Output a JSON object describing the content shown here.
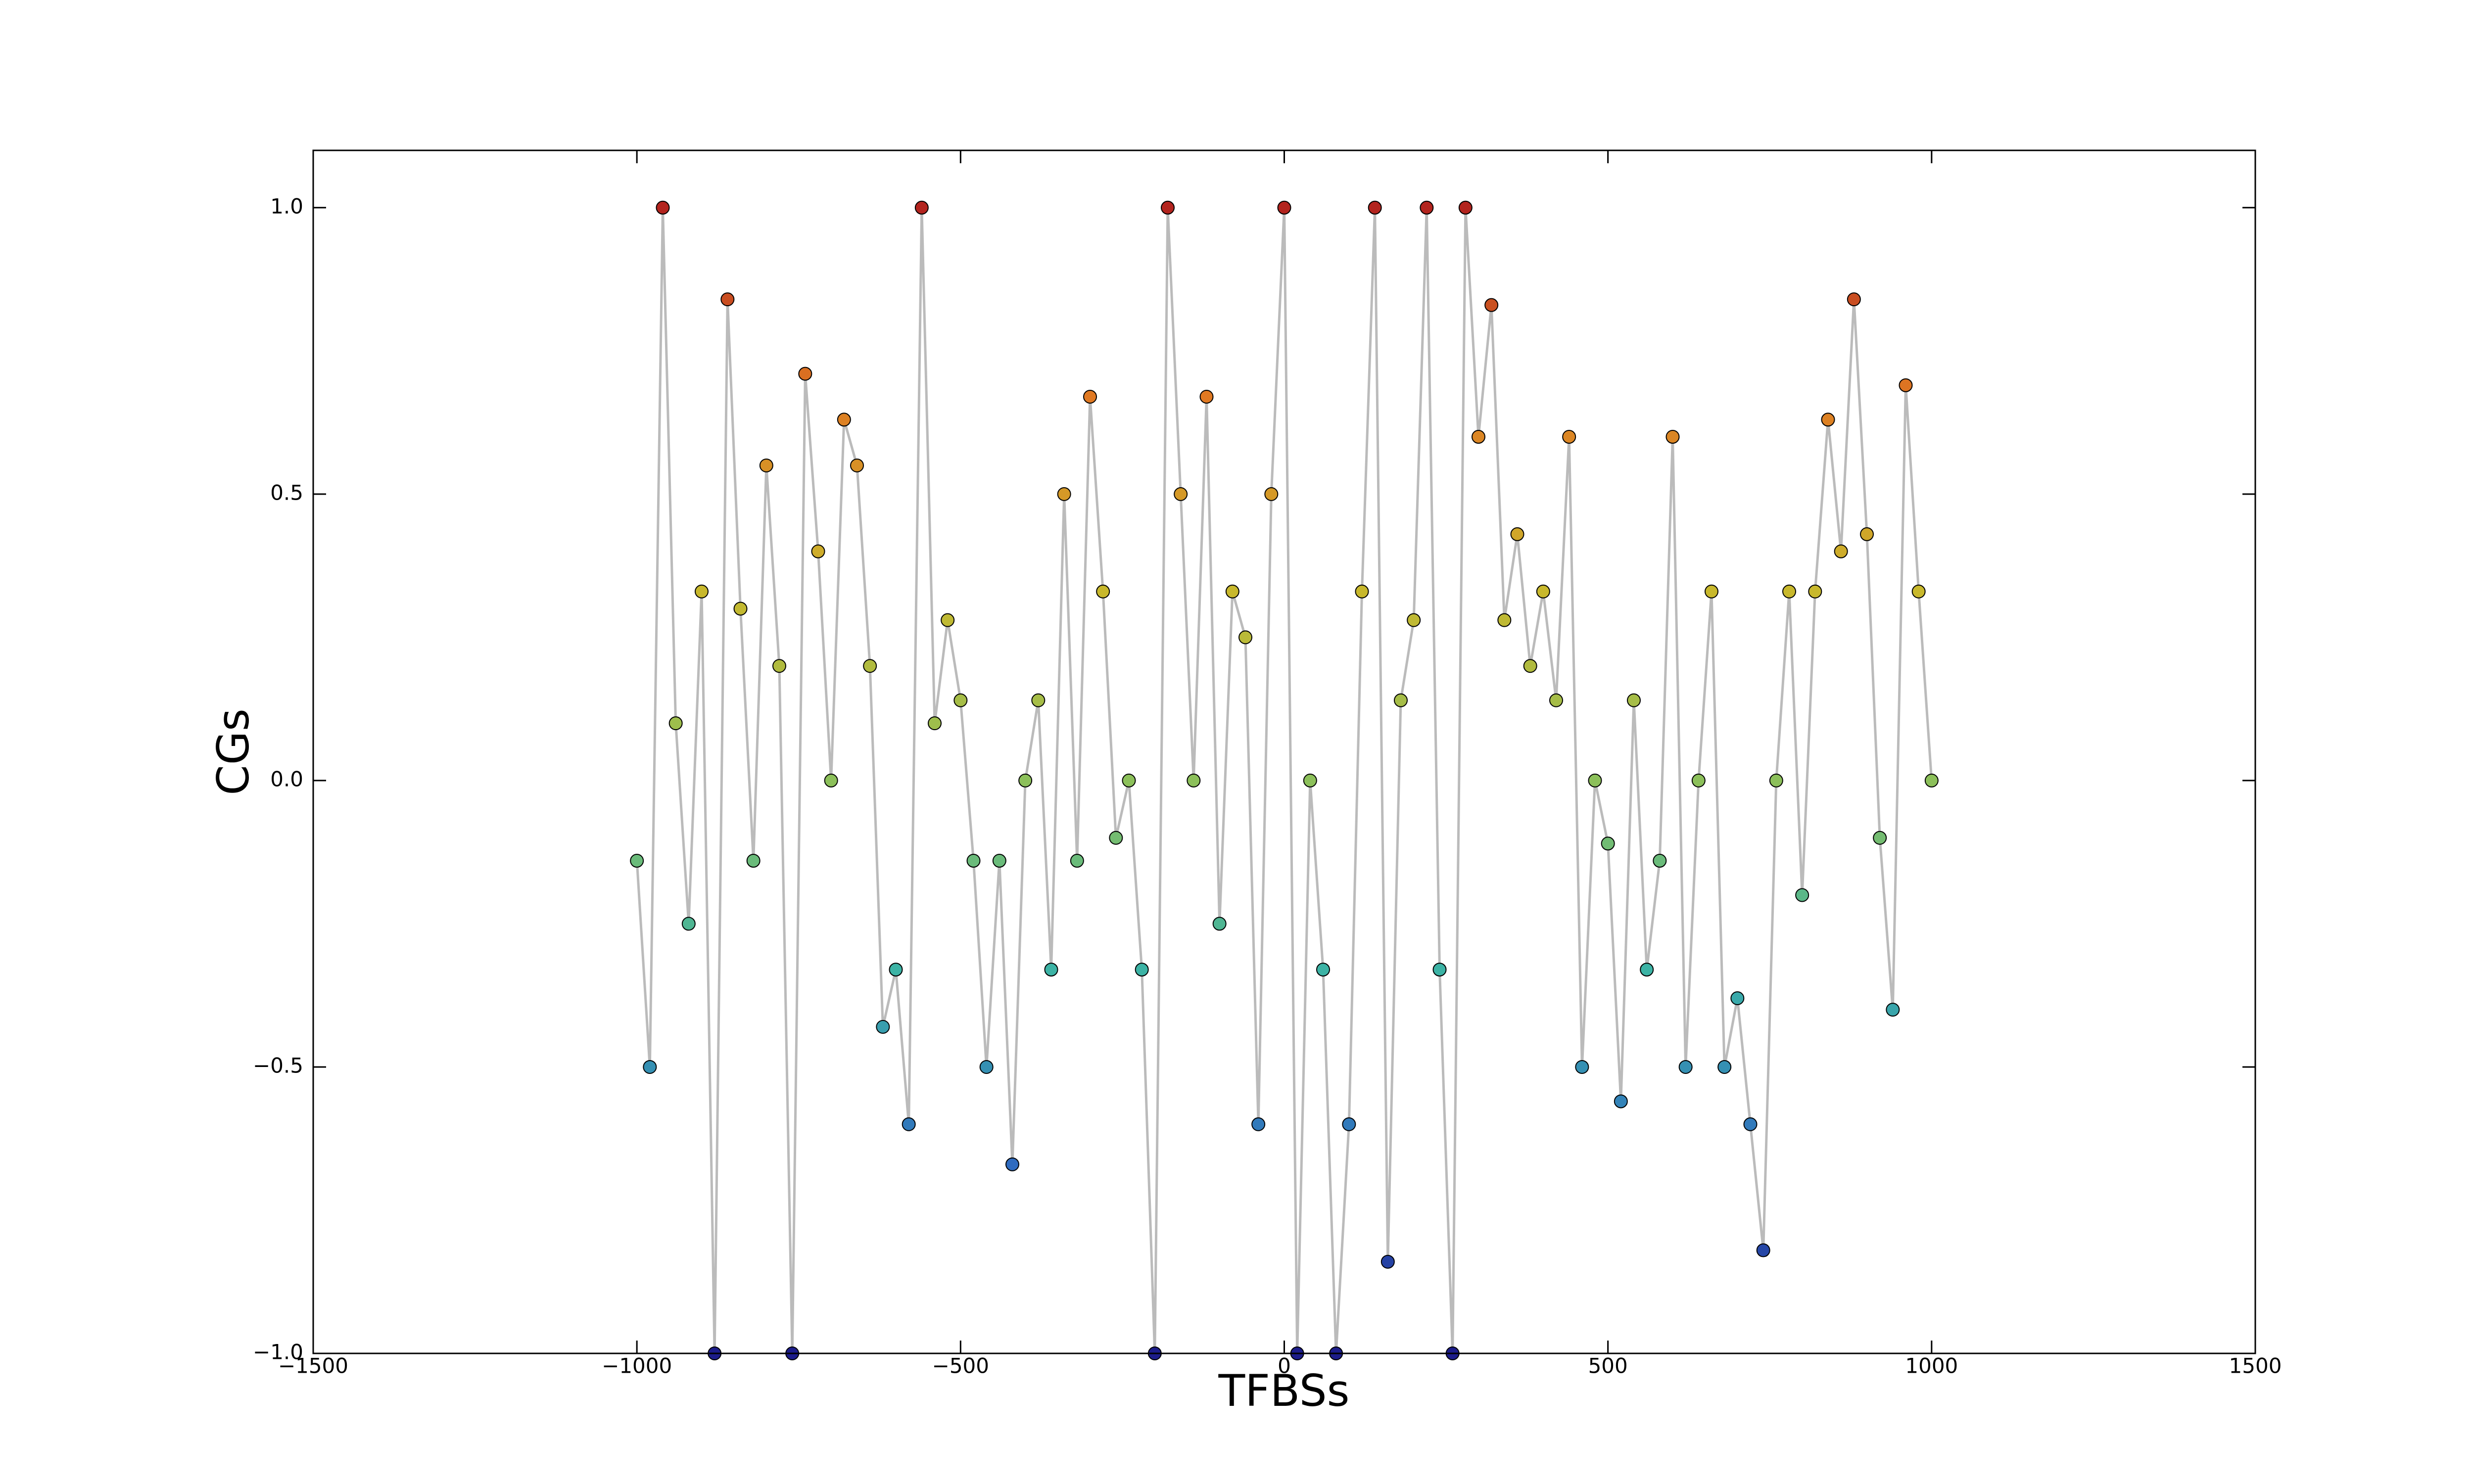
{
  "chart_data": {
    "type": "scatter",
    "x_label": "TFBSs",
    "y_label": "CGs",
    "x": [
      -1000,
      -980,
      -960,
      -940,
      -920,
      -900,
      -880,
      -860,
      -840,
      -820,
      -800,
      -780,
      -760,
      -740,
      -720,
      -700,
      -680,
      -660,
      -640,
      -620,
      -600,
      -580,
      -560,
      -540,
      -520,
      -500,
      -480,
      -460,
      -440,
      -420,
      -400,
      -380,
      -360,
      -340,
      -320,
      -300,
      -280,
      -260,
      -240,
      -220,
      -200,
      -180,
      -160,
      -140,
      -120,
      -100,
      -80,
      -60,
      -40,
      -20,
      0,
      20,
      40,
      60,
      80,
      100,
      120,
      140,
      160,
      180,
      200,
      220,
      240,
      260,
      280,
      300,
      320,
      340,
      360,
      380,
      400,
      420,
      440,
      460,
      480,
      500,
      520,
      540,
      560,
      580,
      600,
      620,
      640,
      660,
      680,
      700,
      720,
      740,
      760,
      780,
      800,
      820,
      840,
      860,
      880,
      900,
      920,
      940,
      960,
      980,
      1000
    ],
    "values": [
      -0.14,
      -0.5,
      1.0,
      0.1,
      -0.25,
      0.33,
      -1.0,
      0.84,
      0.3,
      -0.14,
      0.55,
      0.2,
      -1.0,
      0.71,
      0.4,
      0.0,
      0.63,
      0.55,
      0.2,
      -0.43,
      -0.33,
      -0.6,
      1.0,
      0.1,
      0.28,
      0.14,
      -0.14,
      -0.5,
      -0.14,
      -0.67,
      0.0,
      0.14,
      -0.33,
      0.5,
      -0.14,
      0.67,
      0.33,
      -0.1,
      0.0,
      -0.33,
      -1.0,
      1.0,
      0.5,
      0.0,
      0.67,
      -0.25,
      0.33,
      0.25,
      -0.6,
      0.5,
      1.0,
      -1.0,
      0.0,
      -0.33,
      -1.0,
      -0.6,
      0.33,
      1.0,
      -0.84,
      0.14,
      0.28,
      1.0,
      -0.33,
      -1.0,
      1.0,
      0.6,
      0.83,
      0.28,
      0.43,
      0.2,
      0.33,
      0.14,
      0.6,
      -0.5,
      0.0,
      -0.11,
      -0.56,
      0.14,
      -0.33,
      -0.14,
      0.6,
      -0.5,
      0.0,
      0.33,
      -0.5,
      -0.38,
      -0.6,
      -0.82,
      0.0,
      0.33,
      -0.2,
      0.33,
      0.63,
      0.4,
      0.84,
      0.43,
      -0.1,
      -0.4,
      0.69,
      0.33,
      0.0
    ],
    "line_color": "#bbbbbb",
    "colormap": [
      "#1c1c8a",
      "#2f6cc0",
      "#3bb3a6",
      "#8cc05a",
      "#c9b82c",
      "#e07a22",
      "#b3241e"
    ],
    "xlim": [
      -1500,
      1500
    ],
    "xticks": [
      {
        "value": -1500,
        "label": "−1500"
      },
      {
        "value": -1000,
        "label": "−1000"
      },
      {
        "value": -500,
        "label": "−500"
      },
      0,
      500,
      1000,
      1500
    ],
    "ylim": [
      -1.0,
      1.1
    ],
    "yticks": [
      {
        "value": -1.0,
        "label": "−1.0"
      },
      {
        "value": -0.5,
        "label": "−0.5"
      },
      {
        "value": 0.0,
        "label": "0.0"
      },
      0.5,
      {
        "value": 1.0,
        "label": "1.0"
      }
    ]
  }
}
